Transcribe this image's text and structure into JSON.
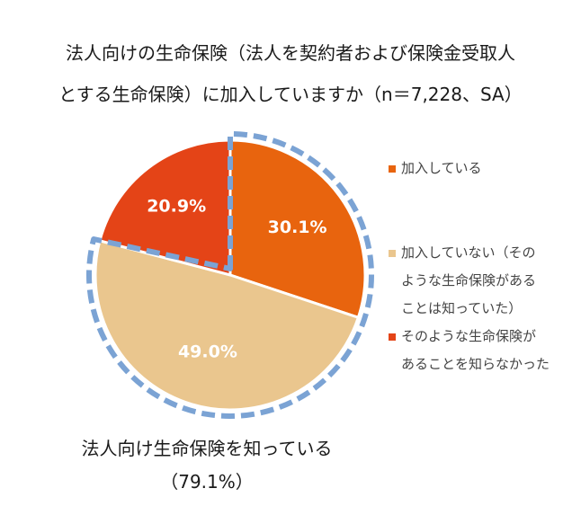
{
  "title_line1": "法人向けの生命保険（法人を契約者および保険金受取人",
  "title_line2": "とする生命保険）に加入していますか（n＝7,228、SA）",
  "chart_data": {
    "type": "pie",
    "title": "法人向けの生命保険（法人を契約者および保険金受取人とする生命保険）に加入していますか（n＝7,228、SA）",
    "categories": [
      "加入している",
      "加入していない（そのような生命保険があることは知っていた）",
      "そのような生命保険があることを知らなかった"
    ],
    "values": [
      30.1,
      49.0,
      20.9
    ],
    "labels": [
      "30.1%",
      "49.0%",
      "20.9%"
    ],
    "colors": [
      "#e8640e",
      "#eac68e",
      "#e44417"
    ],
    "legend_position": "right",
    "legend": [
      {
        "lines": [
          "加入している"
        ],
        "color": "#e8640e"
      },
      {
        "lines": [
          "加入していない（その",
          "ような生命保険がある",
          "ことは知っていた）"
        ],
        "color": "#eac68e"
      },
      {
        "lines": [
          "そのような生命保険が",
          "あることを知らなかった"
        ],
        "color": "#e44417"
      }
    ],
    "highlight_group": {
      "label_line1": "法人向け生命保険を知っている",
      "label_line2": "（79.1%）",
      "value": 79.1,
      "outline_color": "#7ba3d4"
    }
  }
}
